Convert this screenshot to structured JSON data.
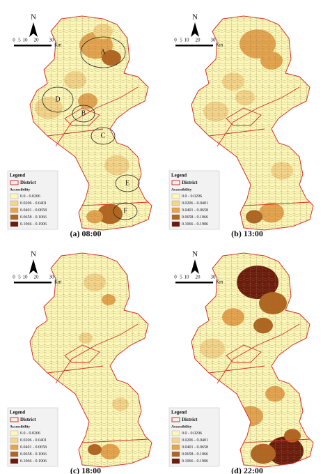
{
  "north": "N",
  "scale": {
    "ticks": [
      "0",
      "5",
      "10",
      "20",
      "30"
    ],
    "unit": "Km"
  },
  "legend": {
    "title": "Legend",
    "district": "District",
    "field": "Accessibility",
    "classes": [
      {
        "label": "0.0 - 0.0206",
        "color": "#fdf8b8"
      },
      {
        "label": "0.0206 - 0.0401",
        "color": "#f5d58a"
      },
      {
        "label": "0.0401 - 0.0658",
        "color": "#e5a44e"
      },
      {
        "label": "0.0658 - 0.1066",
        "color": "#b2651f"
      },
      {
        "label": "0.1066 - 0.1906",
        "color": "#6b1a0b"
      }
    ]
  },
  "panels": [
    {
      "caption": "(a) 08:00"
    },
    {
      "caption": "(b) 13:00"
    },
    {
      "caption": "(c) 18:00"
    },
    {
      "caption": "(d) 22:00"
    }
  ],
  "zones": [
    {
      "label": "A"
    },
    {
      "label": "B"
    },
    {
      "label": "C"
    },
    {
      "label": "D"
    },
    {
      "label": "E"
    },
    {
      "label": "F"
    }
  ]
}
